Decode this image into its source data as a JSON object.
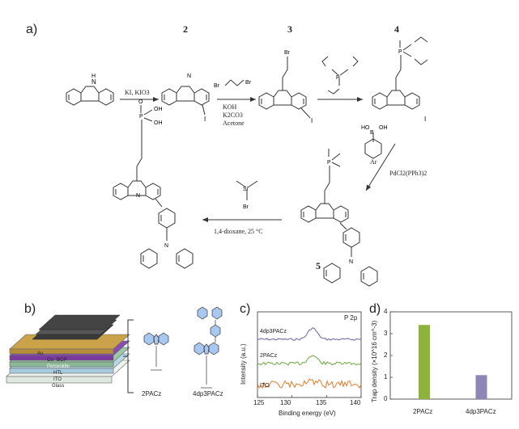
{
  "panels": {
    "a": "a)",
    "b": "b)",
    "c": "c)",
    "d": "d)"
  },
  "scheme": {
    "compounds": {
      "c2": "2",
      "c3": "3",
      "c4": "4",
      "c5": "5"
    },
    "step1": "KI, KIO3",
    "step2_top": "Br",
    "step2_top2": "Br",
    "step2_lines": [
      "KOH",
      "K2CO3",
      "Acetone"
    ],
    "step4_lines": [
      "Ar"
    ],
    "step4_cat": "PdCl2(PPh3)2",
    "step5": "1,4-dioxane, 25 °C",
    "atoms": {
      "N": "N",
      "H": "H",
      "I": "I",
      "Br": "Br",
      "Si": "Si",
      "P": "P",
      "O": "O",
      "OH": "OH",
      "B": "B",
      "HO": "HO"
    }
  },
  "device": {
    "layers": [
      "Au",
      "Cu",
      "BCP",
      "Perovskite",
      "HTL",
      "ITO",
      "Glass"
    ],
    "molecules": [
      "2PACz",
      "4dp3PACz"
    ]
  },
  "xps": {
    "title": "P 2p",
    "xlabel": "Binding energy (eV)",
    "ylabel": "Intensity (a.u.)",
    "xticks": [
      "125",
      "130",
      "135",
      "140"
    ],
    "labels": [
      "4dp3PACz",
      "2PACz",
      "ITO"
    ]
  },
  "chart_data": {
    "type": "bar",
    "categories": [
      "2PACz",
      "4dp3PACz"
    ],
    "values": [
      3.4,
      1.1
    ],
    "ylabel": "Trap density (×10^16 cm^-3)",
    "ylim": [
      0,
      4
    ],
    "yticks": [
      "0",
      "1",
      "2",
      "3",
      "4"
    ],
    "colors": [
      "#8db33a",
      "#8f86b8"
    ]
  }
}
